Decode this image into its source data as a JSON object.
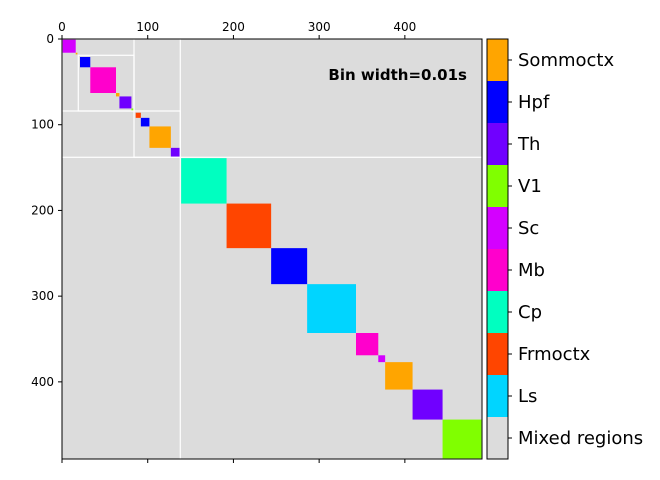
{
  "chart_data": {
    "type": "heatmap",
    "annotation": "Bin width=0.01s",
    "x_ticks": [
      0,
      100,
      200,
      300,
      400
    ],
    "y_ticks": [
      0,
      100,
      200,
      300,
      400
    ],
    "xlim": [
      0,
      490
    ],
    "ylim": [
      0,
      490
    ],
    "background_color": "#dcdcdc",
    "background_label": "Mixed regions",
    "grid": false,
    "legend_position": "right",
    "legend": [
      {
        "label": "Sommoctx",
        "color": "#ffa500"
      },
      {
        "label": "Hpf",
        "color": "#0000ff"
      },
      {
        "label": "Th",
        "color": "#7000ff"
      },
      {
        "label": "V1",
        "color": "#80ff00"
      },
      {
        "label": "Sc",
        "color": "#d400ff"
      },
      {
        "label": "Mb",
        "color": "#ff00cc"
      },
      {
        "label": "Cp",
        "color": "#00ffc0"
      },
      {
        "label": "Frmoctx",
        "color": "#ff4500"
      },
      {
        "label": "Ls",
        "color": "#00d5ff"
      },
      {
        "label": "Mixed regions",
        "color": "#dcdcdc"
      }
    ],
    "blocks": [
      {
        "start": 0,
        "end": 16,
        "region": "Sc"
      },
      {
        "start": 16,
        "end": 18,
        "region": "Sommoctx"
      },
      {
        "start": 21,
        "end": 33,
        "region": "Hpf"
      },
      {
        "start": 33,
        "end": 63,
        "region": "Mb"
      },
      {
        "start": 63,
        "end": 67,
        "region": "Sommoctx"
      },
      {
        "start": 67,
        "end": 81,
        "region": "Th"
      },
      {
        "start": 81,
        "end": 84,
        "region": "V1"
      },
      {
        "start": 86,
        "end": 92,
        "region": "Frmoctx"
      },
      {
        "start": 92,
        "end": 102,
        "region": "Hpf"
      },
      {
        "start": 102,
        "end": 127,
        "region": "Sommoctx"
      },
      {
        "start": 127,
        "end": 138,
        "region": "Th"
      },
      {
        "start": 139,
        "end": 192,
        "region": "Cp"
      },
      {
        "start": 192,
        "end": 244,
        "region": "Frmoctx"
      },
      {
        "start": 244,
        "end": 286,
        "region": "Hpf"
      },
      {
        "start": 286,
        "end": 343,
        "region": "Ls"
      },
      {
        "start": 343,
        "end": 369,
        "region": "Mb"
      },
      {
        "start": 369,
        "end": 377,
        "region": "Sc"
      },
      {
        "start": 377,
        "end": 409,
        "region": "Sommoctx"
      },
      {
        "start": 409,
        "end": 444,
        "region": "Th"
      },
      {
        "start": 444,
        "end": 490,
        "region": "V1"
      }
    ],
    "outlines": [
      {
        "start": 0,
        "end": 84
      },
      {
        "start": 19,
        "end": 84
      },
      {
        "start": 84,
        "end": 138
      },
      {
        "start": 0,
        "end": 138
      },
      {
        "start": 138,
        "end": 490
      }
    ]
  }
}
